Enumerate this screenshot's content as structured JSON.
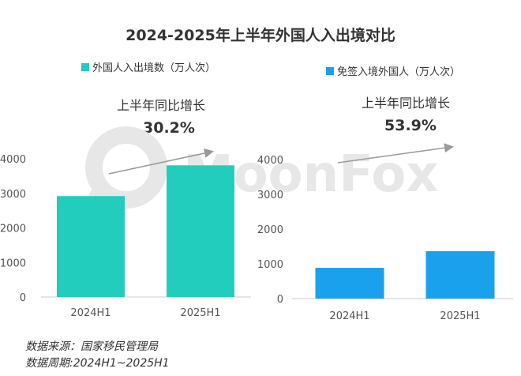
{
  "page": {
    "title": "2024-2025年上半年外国人入出境对比"
  },
  "watermark": "MoonFox",
  "panels": [
    {
      "legend": "外国人入出境数（万人次）",
      "growth_label": "上半年同比增长",
      "growth_value": "30.2%",
      "color": "#22CDBD"
    },
    {
      "legend": "免签入境外国人（万人次）",
      "growth_label": "上半年同比增长",
      "growth_value": "53.9%",
      "color": "#1AA1EE"
    }
  ],
  "footer": {
    "source": "数据来源：国家移民管理局",
    "period": "数据周期:2024H1~2025H1"
  },
  "chart_data": [
    {
      "type": "bar",
      "categories": [
        "2024H1",
        "2025H1"
      ],
      "values": [
        2920,
        3810
      ],
      "ylim": [
        0,
        4000
      ],
      "yticks": [
        "0",
        "1000",
        "2000",
        "3000",
        "4000"
      ],
      "series": [
        {
          "name": "外国人入出境数（万人次）",
          "values": [
            2920,
            3810
          ]
        }
      ]
    },
    {
      "type": "bar",
      "categories": [
        "2024H1",
        "2025H1"
      ],
      "values": [
        885,
        1363
      ],
      "ylim": [
        0,
        4000
      ],
      "yticks": [
        "0",
        "1000",
        "2000",
        "3000",
        "4000"
      ],
      "series": [
        {
          "name": "免签入境外国人（万人次）",
          "values": [
            885,
            1363
          ]
        }
      ]
    }
  ]
}
